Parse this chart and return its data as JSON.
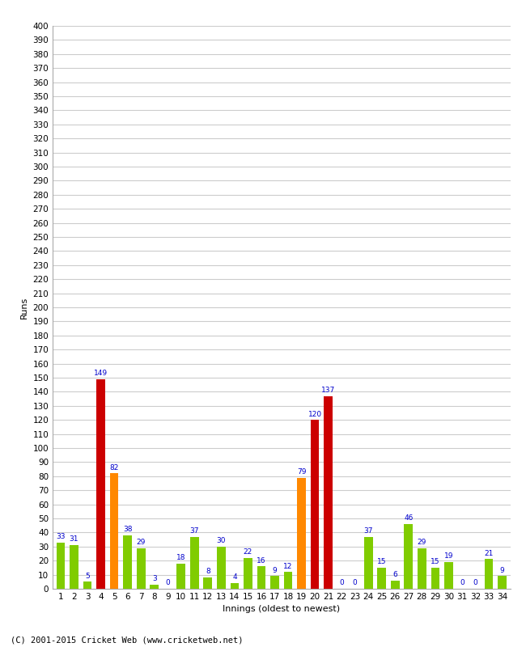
{
  "innings": [
    1,
    2,
    3,
    4,
    5,
    6,
    7,
    8,
    9,
    10,
    11,
    12,
    13,
    14,
    15,
    16,
    17,
    18,
    19,
    20,
    21,
    22,
    23,
    24,
    25,
    26,
    27,
    28,
    29,
    30,
    31,
    32,
    33,
    34
  ],
  "runs": [
    33,
    31,
    5,
    149,
    82,
    38,
    29,
    3,
    0,
    18,
    37,
    8,
    30,
    4,
    22,
    16,
    9,
    12,
    79,
    120,
    137,
    0,
    0,
    37,
    15,
    6,
    46,
    29,
    15,
    19,
    0,
    0,
    21,
    9
  ],
  "colors": [
    "#80cc00",
    "#80cc00",
    "#80cc00",
    "#cc0000",
    "#ff8800",
    "#80cc00",
    "#80cc00",
    "#80cc00",
    "#80cc00",
    "#80cc00",
    "#80cc00",
    "#80cc00",
    "#80cc00",
    "#80cc00",
    "#80cc00",
    "#80cc00",
    "#80cc00",
    "#80cc00",
    "#ff8800",
    "#cc0000",
    "#cc0000",
    "#80cc00",
    "#80cc00",
    "#80cc00",
    "#80cc00",
    "#80cc00",
    "#80cc00",
    "#80cc00",
    "#80cc00",
    "#80cc00",
    "#80cc00",
    "#80cc00",
    "#80cc00",
    "#80cc00"
  ],
  "xlabel": "Innings (oldest to newest)",
  "ylabel": "Runs",
  "ylim": [
    0,
    400
  ],
  "yticks": [
    0,
    10,
    20,
    30,
    40,
    50,
    60,
    70,
    80,
    90,
    100,
    110,
    120,
    130,
    140,
    150,
    160,
    170,
    180,
    190,
    200,
    210,
    220,
    230,
    240,
    250,
    260,
    270,
    280,
    290,
    300,
    310,
    320,
    330,
    340,
    350,
    360,
    370,
    380,
    390,
    400
  ],
  "footer": "(C) 2001-2015 Cricket Web (www.cricketweb.net)",
  "bg_color": "#ffffff",
  "grid_color": "#cccccc",
  "label_color": "#0000cc",
  "label_fontsize": 6.5,
  "tick_fontsize": 7.5,
  "axis_label_fontsize": 8
}
